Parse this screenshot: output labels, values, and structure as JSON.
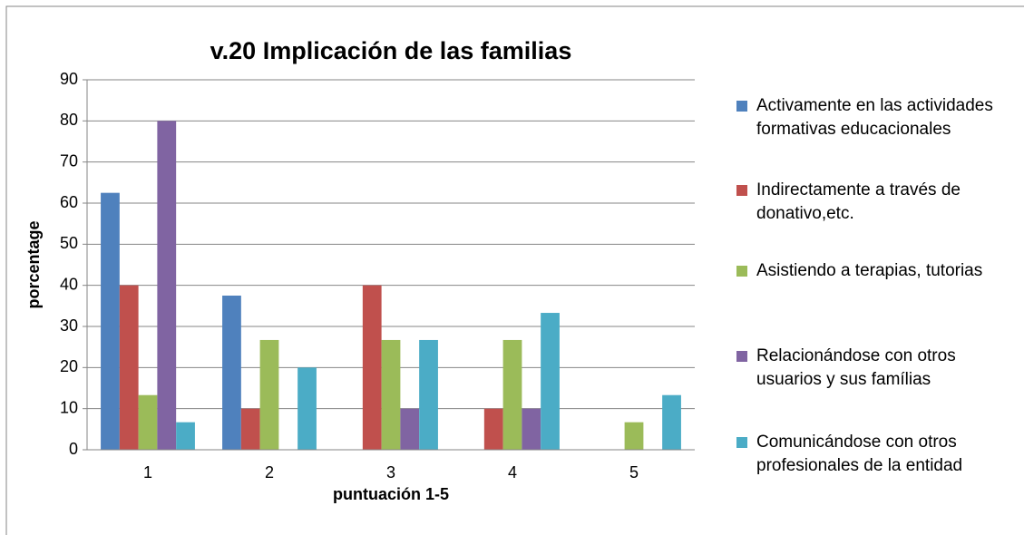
{
  "chart_data": {
    "type": "bar",
    "title": "v.20 Implicación de las familias",
    "x_label": "puntuación 1-5",
    "y_label": "porcentage",
    "categories": [
      "1",
      "2",
      "3",
      "4",
      "5"
    ],
    "series": [
      {
        "name": "Activamente en las actividades formativas educacionales",
        "color": "#4f81bd",
        "values": [
          62.5,
          37.5,
          0,
          0,
          0
        ]
      },
      {
        "name": "Indirectamente a través de donativo,etc.",
        "color": "#c0504d",
        "values": [
          40,
          10,
          40,
          10,
          0
        ]
      },
      {
        "name": "Asistiendo a terapias, tutorias",
        "color": "#9bbb59",
        "values": [
          13.3,
          26.7,
          26.7,
          26.7,
          6.7
        ]
      },
      {
        "name": "Relacionándose con otros usuarios y sus famílias",
        "color": "#8064a2",
        "values": [
          80,
          0,
          10,
          10,
          0
        ]
      },
      {
        "name": "Comunicándose con otros profesionales de la entidad",
        "color": "#4bacc6",
        "values": [
          6.7,
          20,
          26.7,
          33.3,
          13.3
        ]
      }
    ],
    "ylim": [
      0,
      90
    ],
    "yticks": [
      0,
      10,
      20,
      30,
      40,
      50,
      60,
      70,
      80,
      90
    ],
    "grid": true,
    "legend": "right"
  }
}
